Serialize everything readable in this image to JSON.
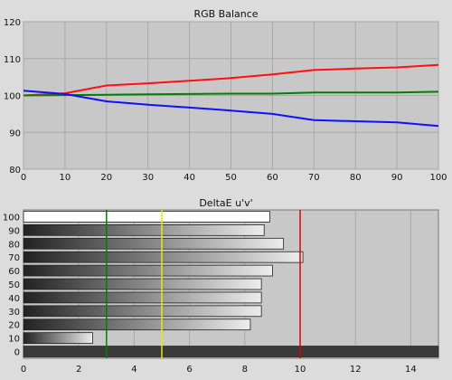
{
  "chart_data": [
    {
      "type": "line",
      "title": "RGB Balance",
      "x": [
        0,
        10,
        20,
        30,
        40,
        50,
        60,
        70,
        80,
        90,
        100
      ],
      "xlim": [
        0,
        100
      ],
      "ylim": [
        80,
        120
      ],
      "xticks": [
        0,
        10,
        20,
        30,
        40,
        50,
        60,
        70,
        80,
        90,
        100
      ],
      "yticks": [
        80,
        90,
        100,
        110,
        120
      ],
      "grid": true,
      "series": [
        {
          "color": "#ff1010",
          "values": [
            100,
            100.6,
            102.7,
            103.3,
            104.0,
            104.7,
            105.7,
            106.9,
            107.3,
            107.6,
            108.3
          ]
        },
        {
          "color": "#008000",
          "values": [
            100,
            100.1,
            100.2,
            100.3,
            100.4,
            100.5,
            100.5,
            100.8,
            100.8,
            100.8,
            101.0
          ]
        },
        {
          "color": "#1010ff",
          "values": [
            101.3,
            100.4,
            98.4,
            97.5,
            96.7,
            95.9,
            95.0,
            93.3,
            93.0,
            92.7,
            91.7
          ]
        }
      ]
    },
    {
      "type": "bar",
      "orientation": "horizontal",
      "title": "DeltaE u'v'",
      "categories": [
        "100",
        "90",
        "80",
        "70",
        "60",
        "50",
        "40",
        "30",
        "20",
        "10",
        "0"
      ],
      "values": [
        8.9,
        8.7,
        9.4,
        10.1,
        9.0,
        8.6,
        8.6,
        8.6,
        8.2,
        2.5,
        15.0
      ],
      "xlim": [
        0,
        15
      ],
      "xticks": [
        0,
        2,
        4,
        6,
        8,
        10,
        12,
        14
      ],
      "grid": true,
      "reference_lines": [
        {
          "value": 3,
          "color": "#008000"
        },
        {
          "value": 5,
          "color": "#e8e800"
        },
        {
          "value": 10,
          "color": "#e00000"
        }
      ]
    }
  ]
}
